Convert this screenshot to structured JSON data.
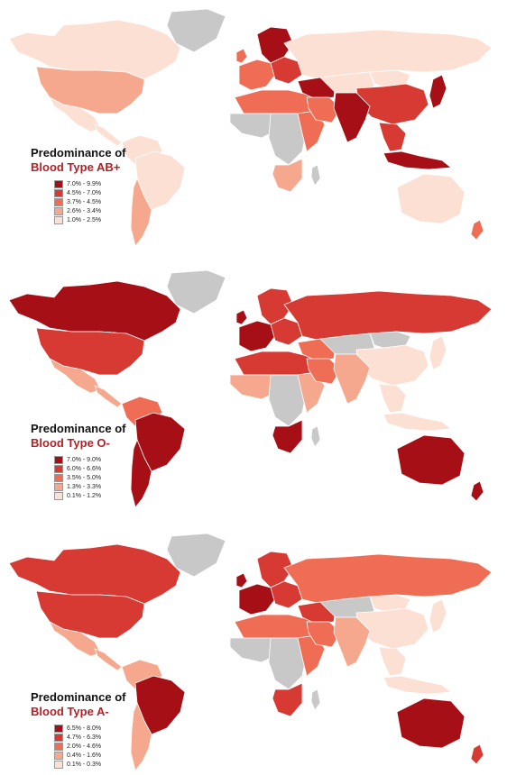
{
  "palette": {
    "no_data": "#c8c8c8",
    "ramp": [
      "#a50f15",
      "#d63a32",
      "#ef6d55",
      "#f6a88e",
      "#fde0d4"
    ],
    "title_accent": "#b31f24"
  },
  "maps": [
    {
      "title_line1": "Predominance of",
      "title_line2": "Blood Type AB+",
      "legend": [
        "7.0% - 9.9%",
        "4.5% - 7.0%",
        "3.7% - 4.5%",
        "2.6% - 3.4%",
        "1.0% - 2.5%"
      ],
      "regions": {
        "canada": 4,
        "usa": 3,
        "mexico": 4,
        "central_am": 4,
        "greenland": -1,
        "s_am_north": 4,
        "brazil": 4,
        "s_am_south": 3,
        "scandinavia": 0,
        "uk": 2,
        "w_europe": 2,
        "e_europe": 1,
        "russia": 4,
        "n_africa": 2,
        "w_africa": -1,
        "c_africa": -1,
        "e_africa": 2,
        "s_africa": 3,
        "madagascar": -1,
        "middle_east": 0,
        "arabia": 2,
        "c_asia": 4,
        "india": 0,
        "china": 1,
        "mongolia": 4,
        "se_asia": 1,
        "japan": 0,
        "indonesia": 0,
        "australia": 4,
        "nz": 2
      }
    },
    {
      "title_line1": "Predominance of",
      "title_line2": "Blood Type O-",
      "legend": [
        "7.0% - 9.0%",
        "6.0% - 6.6%",
        "3.5% - 5.0%",
        "1.3% - 3.3%",
        "0.1% - 1.2%"
      ],
      "regions": {
        "canada": 0,
        "usa": 1,
        "mexico": 3,
        "central_am": 3,
        "greenland": -1,
        "s_am_north": 2,
        "brazil": 0,
        "s_am_south": 0,
        "scandinavia": 1,
        "uk": 0,
        "w_europe": 0,
        "e_europe": 1,
        "russia": 1,
        "n_africa": 1,
        "w_africa": 3,
        "c_africa": -1,
        "e_africa": 3,
        "s_africa": 0,
        "madagascar": -1,
        "middle_east": 2,
        "arabia": 2,
        "c_asia": -1,
        "india": 3,
        "china": 4,
        "mongolia": -1,
        "se_asia": 4,
        "japan": 4,
        "indonesia": 4,
        "australia": 0,
        "nz": 0
      }
    },
    {
      "title_line1": "Predominance of",
      "title_line2": "Blood Type A-",
      "legend": [
        "6.5% - 8.0%",
        "4.7% - 6.3%",
        "2.0% - 4.6%",
        "0.4% - 1.6%",
        "0.1% - 0.3%"
      ],
      "regions": {
        "canada": 1,
        "usa": 1,
        "mexico": 3,
        "central_am": 3,
        "greenland": -1,
        "s_am_north": 3,
        "brazil": 0,
        "s_am_south": 3,
        "scandinavia": 1,
        "uk": 0,
        "w_europe": 0,
        "e_europe": 1,
        "russia": 2,
        "n_africa": 2,
        "w_africa": -1,
        "c_africa": -1,
        "e_africa": 2,
        "s_africa": 1,
        "madagascar": -1,
        "middle_east": 1,
        "arabia": 2,
        "c_asia": -1,
        "india": 3,
        "china": 4,
        "mongolia": 4,
        "se_asia": 4,
        "japan": 4,
        "indonesia": 4,
        "australia": 0,
        "nz": 1
      }
    }
  ]
}
